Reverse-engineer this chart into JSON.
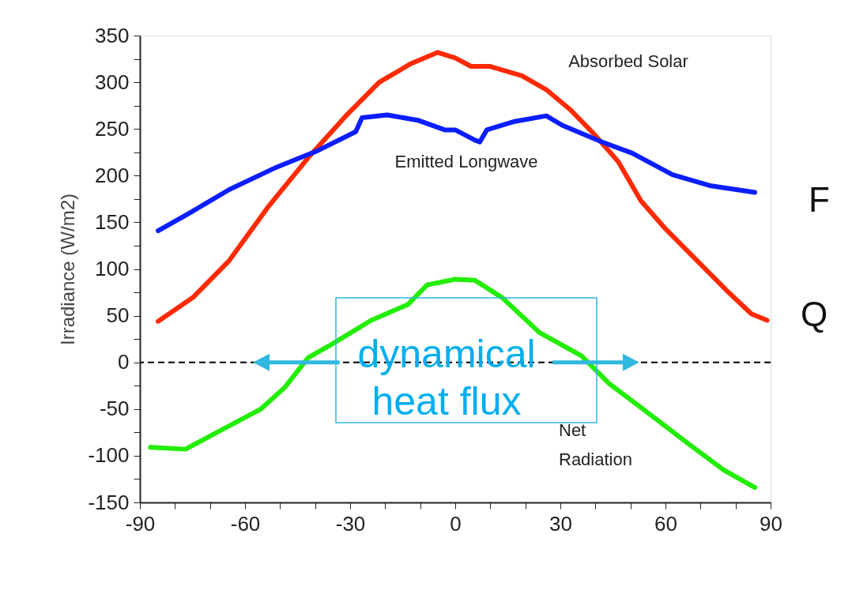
{
  "chart_data": {
    "type": "line",
    "ylabel": "Irradiance (W/m2)",
    "xlim": [
      -90,
      90
    ],
    "ylim": [
      -150,
      350
    ],
    "xticks": [
      -90,
      {
        "value": -80,
        "label": null
      },
      {
        "value": -70,
        "label": null
      },
      -60,
      {
        "value": -50,
        "label": null
      },
      {
        "value": -40,
        "label": null
      },
      -30,
      {
        "value": -20,
        "label": null
      },
      {
        "value": -10,
        "label": null
      },
      0,
      {
        "value": 10,
        "label": null
      },
      {
        "value": 20,
        "label": null
      },
      30,
      {
        "value": 40,
        "label": null
      },
      {
        "value": 50,
        "label": null
      },
      60,
      {
        "value": 70,
        "label": null
      },
      {
        "value": 80,
        "label": null
      },
      90
    ],
    "yticks": [
      -150,
      {
        "value": -125,
        "label": null
      },
      -100,
      {
        "value": -75,
        "label": null
      },
      -50,
      {
        "value": -25,
        "label": null
      },
      0,
      {
        "value": 25,
        "label": null
      },
      50,
      {
        "value": 75,
        "label": null
      },
      100,
      {
        "value": 125,
        "label": null
      },
      150,
      {
        "value": 175,
        "label": null
      },
      200,
      {
        "value": 225,
        "label": null
      },
      250,
      {
        "value": 275,
        "label": null
      },
      300,
      {
        "value": 325,
        "label": null
      },
      350
    ],
    "grid": false,
    "legend": false,
    "marker": "none",
    "line_style": "solid",
    "series": [
      {
        "color": "#ff2a00",
        "x": [
          -84.8,
          -74.7,
          -64.5,
          -53.3,
          -42,
          -30.7,
          -21.7,
          -12.6,
          -5,
          0,
          4.5,
          10,
          19,
          26,
          33,
          39.5,
          46.5,
          53,
          60,
          69,
          78,
          84.5,
          89
        ],
        "values": [
          44,
          70,
          109,
          167,
          219,
          266,
          300,
          320,
          332,
          326,
          317,
          317,
          307,
          292,
          270,
          245,
          215,
          173,
          143,
          109,
          75,
          52,
          45
        ]
      },
      {
        "color": "#0a1eff",
        "x": [
          -84.8,
          -75.8,
          -64.5,
          -51,
          -39.7,
          -28.4,
          -26.6,
          -19.4,
          -10.4,
          -3,
          0,
          5.6,
          7,
          9,
          17,
          26,
          30.5,
          41.9,
          50.5,
          62,
          73,
          85.5
        ],
        "values": [
          141,
          160,
          185,
          209,
          226,
          247,
          262,
          265,
          259,
          249,
          249,
          238,
          236,
          249,
          258,
          264,
          254,
          236,
          224,
          201,
          189,
          182
        ]
      },
      {
        "color": "#22ee00",
        "x": [
          -87,
          -77,
          -69,
          -55.5,
          -48.7,
          -42,
          -35,
          -24,
          -13.5,
          -8,
          0,
          5.6,
          13.5,
          24,
          36,
          44,
          55,
          66.5,
          76.5,
          85.5
        ],
        "values": [
          -91,
          -93,
          -77,
          -50,
          -27,
          5,
          20,
          45,
          62,
          83,
          89,
          88,
          69,
          32,
          7,
          -23,
          -54,
          -87,
          -115,
          -134
        ]
      }
    ],
    "ref_lines": [
      {
        "axis": "y",
        "value": 0,
        "color": "#000000",
        "line_style": "dashed"
      }
    ],
    "annotations": [
      "Absorbed Solar",
      "Emitted Longwave",
      "Net\nRadiation",
      "dynamical\nheat flux",
      "F",
      "Q"
    ]
  }
}
